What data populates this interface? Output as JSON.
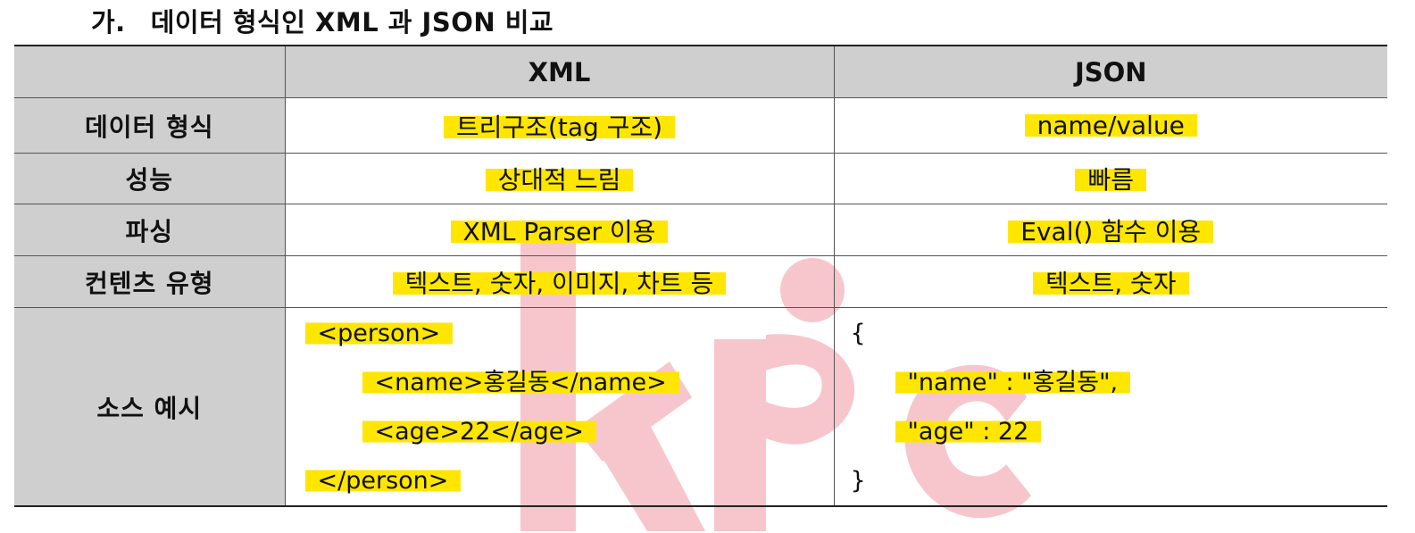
{
  "heading": {
    "number": "가.",
    "text": "데이터 형식인 XML 과 JSON 비교"
  },
  "watermark": {
    "text": "kpc",
    "color": "#f7c6cc"
  },
  "highlight_color": "#ffe600",
  "table": {
    "headers": [
      "",
      "XML",
      "JSON"
    ],
    "rows": [
      {
        "label": "데이터 형식",
        "xml": "트리구조(tag 구조)",
        "json": "name/value"
      },
      {
        "label": "성능",
        "xml": "상대적 느림",
        "json": "빠름"
      },
      {
        "label": "파싱",
        "xml": "XML Parser 이용",
        "json": "Eval() 함수 이용"
      },
      {
        "label": "컨텐츠 유형",
        "xml": "텍스트, 숫자, 이미지, 차트 등",
        "json": "텍스트, 숫자"
      }
    ],
    "source_example": {
      "label": "소스 예시",
      "xml_lines": [
        "<person>",
        "<name>홍길동</name>",
        "<age>22</age>",
        "</person>"
      ],
      "json_lines": [
        "{",
        "\"name\" : \"홍길동\",",
        "\"age\" : 22",
        "}"
      ]
    }
  }
}
